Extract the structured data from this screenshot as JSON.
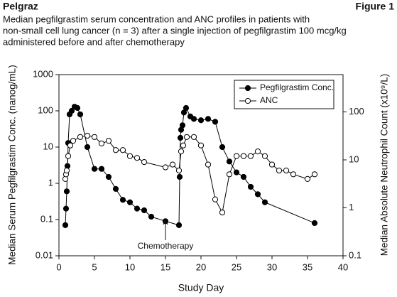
{
  "chart_data": {
    "type": "line",
    "title": "Pelgraz",
    "figure_label": "Figure 1",
    "subtitle": [
      "Median pegfilgrastim serum concentration and ANC profiles in patients with",
      "non-small cell lung cancer (n = 3) after a single injection of pegfilgrastim 100 mcg/kg",
      "administered before and after chemotherapy"
    ],
    "x_label": "Study Day",
    "y_label": "Median Serum Pegfilgrastim Conc. (nanog/mL)",
    "y2_label": "Median Absolute Neutrophil Count (x10⁹/L)",
    "xlim": [
      0,
      40
    ],
    "xticks": [
      0,
      5,
      10,
      15,
      20,
      25,
      30,
      35,
      40
    ],
    "ylim": [
      0.01,
      1000
    ],
    "yticks": [
      0.01,
      0.1,
      1,
      10,
      100,
      1000
    ],
    "y2lim": [
      0.1,
      600
    ],
    "y2ticks": [
      0.1,
      1,
      10,
      100
    ],
    "log_y": true,
    "legend": "upper right",
    "annotations": [
      {
        "text": "Chemotherapy",
        "x": 15
      }
    ],
    "series": [
      {
        "name": "Pegfilgrastim Conc.",
        "color": "#000000",
        "marker": "filled",
        "axis": "y",
        "x": [
          0.9,
          1,
          1.1,
          1.2,
          1.3,
          1.5,
          1.8,
          2.2,
          2.6,
          3,
          4,
          5,
          6,
          7,
          8,
          9,
          10,
          11,
          12,
          13,
          15,
          16.9,
          17,
          17.1,
          17.2,
          17.4,
          17.6,
          17.9,
          18.5,
          19,
          20,
          21,
          22,
          23,
          24,
          25,
          26,
          27,
          28,
          29,
          36
        ],
        "values": [
          0.07,
          0.2,
          0.6,
          3,
          13,
          80,
          100,
          130,
          120,
          80,
          10,
          2.5,
          2.5,
          1.5,
          0.7,
          0.35,
          0.3,
          0.2,
          0.18,
          0.12,
          0.09,
          0.07,
          1.5,
          18,
          30,
          40,
          90,
          120,
          70,
          60,
          55,
          60,
          50,
          10,
          4,
          2,
          1.5,
          0.8,
          0.5,
          0.3,
          0.08
        ]
      },
      {
        "name": "ANC",
        "color": "#000000",
        "marker": "open",
        "axis": "y2",
        "x": [
          0.9,
          1,
          1.1,
          1.3,
          1.6,
          2,
          3,
          4,
          5,
          6,
          7,
          8,
          9,
          10,
          11,
          12,
          15,
          16,
          16.9,
          17.2,
          17.5,
          18,
          19,
          20,
          21,
          22,
          23,
          24,
          25,
          26,
          27,
          28,
          29,
          30,
          31,
          32,
          33,
          35,
          36
        ],
        "values": [
          4,
          5,
          6,
          12,
          20,
          25,
          30,
          32,
          30,
          22,
          25,
          16,
          16,
          12,
          11,
          9,
          7,
          8,
          6,
          15,
          20,
          30,
          30,
          20,
          8,
          1.5,
          0.8,
          5,
          12,
          12,
          12,
          15,
          12,
          8,
          6,
          6,
          5,
          4,
          5
        ]
      }
    ]
  }
}
